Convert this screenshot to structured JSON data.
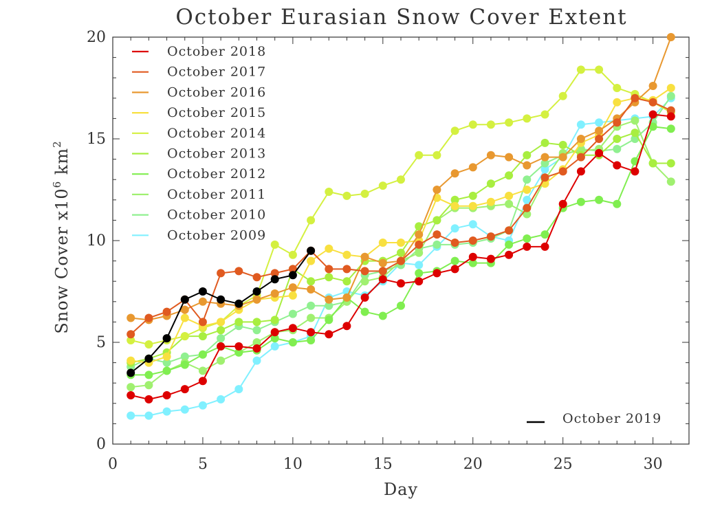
{
  "chart_data": {
    "type": "line",
    "title": "October Eurasian Snow Cover Extent",
    "xlabel": "Day",
    "ylabel_prefix": "Snow Cover x10",
    "ylabel_exp1": "6",
    "ylabel_mid": " km",
    "ylabel_exp2": "2",
    "xlim": [
      0,
      32
    ],
    "ylim": [
      0,
      20
    ],
    "xticks": [
      0,
      5,
      10,
      15,
      20,
      25,
      30
    ],
    "yticks": [
      0,
      5,
      10,
      15,
      20
    ],
    "legend_position": "top-left",
    "x": [
      1,
      2,
      3,
      4,
      5,
      6,
      7,
      8,
      9,
      10,
      11,
      12,
      13,
      14,
      15,
      16,
      17,
      18,
      19,
      20,
      21,
      22,
      23,
      24,
      25,
      26,
      27,
      28,
      29,
      30,
      31
    ],
    "series": [
      {
        "name": "October 2009",
        "color": "#80f0ff",
        "values": [
          1.4,
          1.4,
          1.6,
          1.7,
          1.9,
          2.2,
          2.7,
          4.1,
          4.8,
          5.0,
          5.3,
          7.2,
          7.5,
          7.3,
          8.0,
          8.9,
          8.8,
          9.7,
          10.6,
          10.8,
          10.2,
          10.0,
          12.0,
          13.5,
          14.1,
          15.7,
          15.8,
          15.9,
          16.0,
          16.1,
          17.0
        ]
      },
      {
        "name": "October 2010",
        "color": "#90f090",
        "values": [
          3.8,
          4.2,
          4.0,
          4.3,
          4.4,
          5.2,
          5.8,
          5.6,
          6.0,
          6.4,
          6.8,
          6.8,
          7.0,
          8.3,
          8.5,
          8.8,
          9.6,
          9.8,
          9.8,
          9.9,
          10.1,
          10.5,
          13.0,
          13.8,
          14.2,
          14.5,
          14.4,
          14.5,
          15.0,
          15.8,
          17.1
        ]
      },
      {
        "name": "October 2011",
        "color": "#a0f070",
        "values": [
          2.8,
          2.9,
          3.6,
          4.0,
          3.6,
          4.1,
          4.5,
          5.0,
          5.5,
          5.6,
          6.2,
          6.2,
          7.0,
          8.0,
          8.2,
          9.0,
          9.4,
          11.0,
          11.6,
          11.6,
          11.7,
          11.8,
          11.3,
          13.0,
          14.3,
          14.4,
          14.5,
          15.6,
          15.9,
          13.8,
          12.9
        ]
      },
      {
        "name": "October 2012",
        "color": "#80ee50",
        "values": [
          3.4,
          3.4,
          3.6,
          3.9,
          4.4,
          4.8,
          4.5,
          4.6,
          5.2,
          5.0,
          5.1,
          6.1,
          7.2,
          6.5,
          6.3,
          6.8,
          8.4,
          8.5,
          9.0,
          8.9,
          8.9,
          9.8,
          10.1,
          10.3,
          11.6,
          11.9,
          12.0,
          11.8,
          13.9,
          15.6,
          15.5
        ]
      },
      {
        "name": "October 2013",
        "color": "#a8ee40",
        "values": [
          4.0,
          4.2,
          4.5,
          5.3,
          5.3,
          5.6,
          6.0,
          6.0,
          6.1,
          8.6,
          8.0,
          8.2,
          8.0,
          9.0,
          9.0,
          9.4,
          10.7,
          11.0,
          12.0,
          12.2,
          12.8,
          13.2,
          14.2,
          14.8,
          14.7,
          14.2,
          14.2,
          15.0,
          15.3,
          13.8,
          13.8
        ]
      },
      {
        "name": "October 2014",
        "color": "#d4f040",
        "values": [
          5.1,
          4.9,
          5.1,
          5.3,
          5.7,
          6.0,
          6.8,
          7.3,
          9.8,
          9.3,
          11.0,
          12.4,
          12.2,
          12.3,
          12.7,
          13.0,
          14.2,
          14.2,
          15.4,
          15.7,
          15.7,
          15.8,
          16.0,
          16.2,
          17.1,
          18.4,
          18.4,
          17.5,
          17.2,
          16.8,
          16.3
        ]
      },
      {
        "name": "October 2015",
        "color": "#f8e040",
        "values": [
          4.1,
          4.0,
          4.3,
          6.2,
          5.8,
          6.0,
          6.6,
          7.1,
          7.2,
          7.3,
          9.0,
          9.6,
          9.3,
          9.2,
          9.9,
          9.9,
          10.0,
          12.1,
          11.7,
          11.7,
          11.9,
          12.2,
          12.5,
          12.8,
          13.5,
          14.8,
          15.2,
          16.8,
          17.0,
          16.9,
          17.5
        ]
      },
      {
        "name": "October 2016",
        "color": "#e89830",
        "values": [
          6.2,
          6.1,
          6.3,
          6.6,
          7.0,
          6.9,
          6.8,
          7.1,
          7.4,
          7.7,
          7.6,
          7.1,
          7.2,
          9.2,
          8.9,
          9.0,
          10.3,
          12.5,
          13.3,
          13.6,
          14.2,
          14.1,
          13.7,
          14.1,
          14.1,
          15.0,
          15.4,
          16.0,
          16.8,
          17.6,
          20.0
        ]
      },
      {
        "name": "October 2017",
        "color": "#e05a20",
        "values": [
          5.4,
          6.2,
          6.5,
          7.1,
          6.0,
          8.4,
          8.5,
          8.2,
          8.4,
          8.6,
          9.5,
          8.6,
          8.6,
          8.5,
          8.5,
          9.0,
          9.8,
          10.3,
          9.9,
          10.0,
          10.2,
          10.5,
          11.6,
          13.1,
          13.4,
          14.1,
          15.0,
          15.8,
          17.0,
          16.8,
          16.4
        ]
      },
      {
        "name": "October 2018",
        "color": "#dd0000",
        "values": [
          2.4,
          2.2,
          2.4,
          2.7,
          3.1,
          4.8,
          4.8,
          4.7,
          5.5,
          5.7,
          5.5,
          5.4,
          5.8,
          7.2,
          8.1,
          7.9,
          8.0,
          8.4,
          8.6,
          9.2,
          9.1,
          9.3,
          9.7,
          9.7,
          11.8,
          13.4,
          14.3,
          13.7,
          13.4,
          16.2,
          16.1
        ]
      },
      {
        "name": "October 2019",
        "color": "#000000",
        "x": [
          1,
          2,
          3,
          4,
          5,
          6,
          7,
          8,
          9,
          10,
          11
        ],
        "values": [
          3.5,
          4.2,
          5.2,
          7.1,
          7.5,
          7.1,
          6.9,
          7.5,
          8.1,
          8.3,
          9.5
        ]
      }
    ],
    "legend_main": [
      "October 2018",
      "October 2017",
      "October 2016",
      "October 2015",
      "October 2014",
      "October 2013",
      "October 2012",
      "October 2011",
      "October 2010",
      "October 2009"
    ],
    "legend_main_colors": [
      "#dd0000",
      "#e05a20",
      "#e89830",
      "#f8e040",
      "#d4f040",
      "#a8ee40",
      "#80ee50",
      "#a0f070",
      "#90f090",
      "#80f0ff"
    ],
    "legend_secondary": "October 2019",
    "legend_secondary_color": "#000000"
  }
}
